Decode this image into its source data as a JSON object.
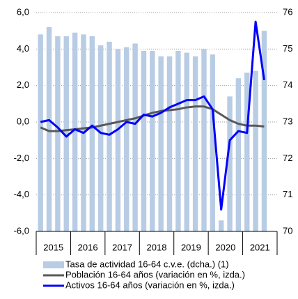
{
  "chart_data": {
    "type": "bar_line",
    "categories": [
      null,
      null,
      null,
      null,
      null,
      null,
      null,
      null,
      null,
      null,
      null,
      null,
      null,
      null,
      null,
      null,
      null,
      null,
      null,
      null,
      null,
      null,
      null,
      null,
      null,
      null,
      null
    ],
    "year_labels": [
      "2015",
      "2016",
      "2017",
      "2018",
      "2019",
      "2020",
      "2021"
    ],
    "series": [
      {
        "name": "Tasa de actividad 16-64 c.v.e. (dcha.) (1)",
        "kind": "bar",
        "axis": "y2",
        "color": "#b8cce4",
        "values": [
          75.4,
          75.6,
          75.35,
          75.35,
          75.45,
          75.4,
          75.35,
          75.1,
          75.2,
          75.0,
          75.05,
          75.15,
          74.95,
          74.95,
          74.8,
          74.8,
          74.95,
          74.9,
          74.8,
          75.0,
          74.85,
          70.3,
          73.7,
          74.2,
          74.35,
          74.4,
          75.5
        ]
      },
      {
        "name": "Población 16-64 años (variación en %, izda.)",
        "kind": "line",
        "color": "#595959",
        "values": [
          -0.3,
          -0.5,
          -0.5,
          -0.45,
          -0.4,
          -0.35,
          -0.3,
          -0.2,
          -0.1,
          0,
          0.1,
          0.2,
          0.35,
          0.5,
          0.6,
          0.65,
          0.7,
          0.8,
          0.85,
          0.85,
          0.7,
          0.4,
          0.1,
          -0.1,
          -0.2,
          -0.2,
          -0.25
        ]
      },
      {
        "name": "Activos 16-64 años (variación en %, izda.)",
        "kind": "line",
        "color": "#0000ff",
        "values": [
          0,
          0.1,
          -0.3,
          -0.8,
          -0.4,
          -0.6,
          -0.2,
          -0.6,
          -0.7,
          -0.4,
          0,
          -0.1,
          0.4,
          0.3,
          0.5,
          0.8,
          1.0,
          1.2,
          1.2,
          1.4,
          0.7,
          -4.8,
          -1.0,
          -0.5,
          -0.6,
          5.5,
          2.3
        ]
      }
    ],
    "ylim": [
      -6,
      6
    ],
    "yticks": [
      {
        "value": 6,
        "label": "6,0"
      },
      {
        "value": 4,
        "label": "4,0"
      },
      {
        "value": 2,
        "label": "2,0"
      },
      {
        "value": 0,
        "label": "0,0"
      },
      {
        "value": -2,
        "label": "-2,0"
      },
      {
        "value": -4,
        "label": "-4,0"
      },
      {
        "value": -6,
        "label": "-6,0"
      }
    ],
    "y2lim": [
      70,
      76
    ],
    "y2ticks": [
      76,
      75,
      74,
      73,
      72,
      71,
      70
    ],
    "grid": true,
    "legend": "bottom"
  }
}
